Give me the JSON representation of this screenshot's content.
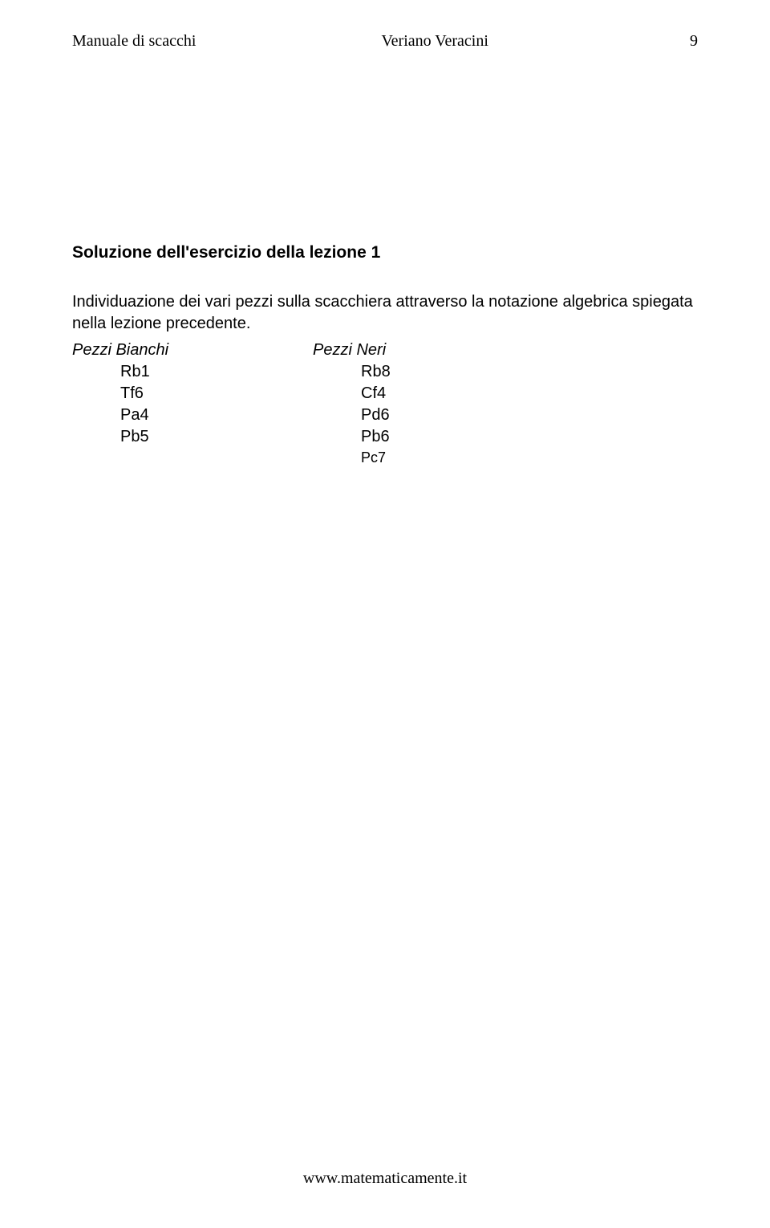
{
  "header": {
    "left": "Manuale di scacchi",
    "center": "Veriano Veracini",
    "pageNumber": "9"
  },
  "section": {
    "title": "Soluzione dell'esercizio della lezione 1",
    "description": "Individuazione dei vari pezzi sulla scacchiera attraverso la notazione algebrica spiegata nella lezione precedente."
  },
  "pieces": {
    "headerWhite": "Pezzi Bianchi",
    "headerBlack": "Pezzi Neri",
    "rows": [
      {
        "white": "Rb1",
        "black": "Rb8"
      },
      {
        "white": "Tf6",
        "black": "Cf4"
      },
      {
        "white": "Pa4",
        "black": "Pd6"
      },
      {
        "white": "Pb5",
        "black": "Pb6"
      },
      {
        "white": "",
        "black": "Pc7"
      }
    ]
  },
  "footer": {
    "url": "www.matematicamente.it"
  },
  "styles": {
    "background_color": "#ffffff",
    "text_color": "#000000",
    "header_font": "Times New Roman",
    "body_font": "Arial",
    "header_fontsize": 20,
    "title_fontsize": 21,
    "body_fontsize": 20,
    "footer_fontsize": 20
  }
}
